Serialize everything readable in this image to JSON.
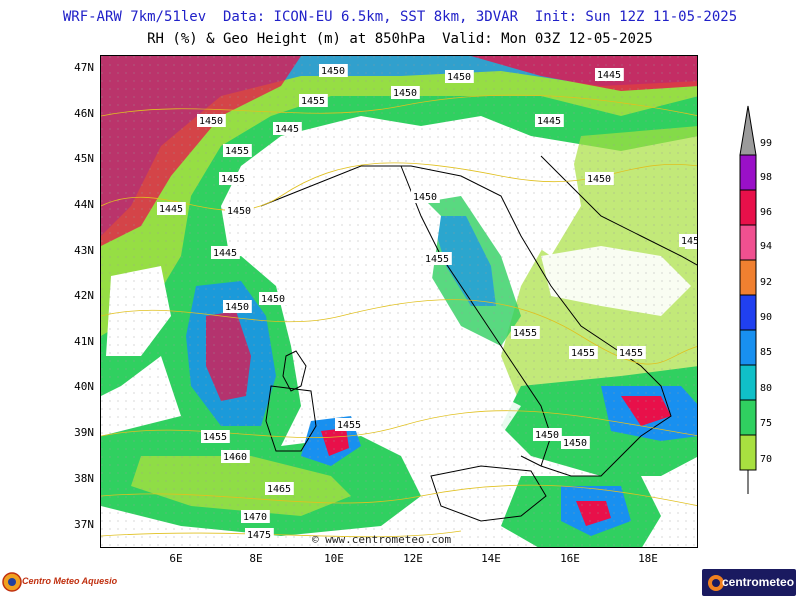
{
  "header": {
    "line1": "WRF-ARW 7km/51lev  Data: ICON-EU 6.5km, SST 8km, 3DVAR  Init: Sun 12Z 11-05-2025",
    "line2": "RH (%) & Geo Height (m) at 850hPa  Valid: Mon 03Z 12-05-2025"
  },
  "axes": {
    "lat_labels": [
      "47N",
      "46N",
      "45N",
      "44N",
      "43N",
      "42N",
      "41N",
      "40N",
      "39N",
      "38N",
      "37N"
    ],
    "lon_labels": [
      "6E",
      "8E",
      "10E",
      "12E",
      "14E",
      "16E",
      "18E"
    ]
  },
  "colorbar": {
    "levels": [
      "99",
      "98",
      "96",
      "94",
      "92",
      "90",
      "85",
      "80",
      "75",
      "70"
    ],
    "colors": [
      "#9b9b9b",
      "#9a10c8",
      "#e8104a",
      "#f05090",
      "#f08030",
      "#2040f0",
      "#1890f0",
      "#10c0c8",
      "#30d060",
      "#a8e040"
    ]
  },
  "contours": [
    {
      "label": "1450"
    },
    {
      "label": "1450"
    },
    {
      "label": "1445"
    },
    {
      "label": "1450"
    },
    {
      "label": "1455"
    },
    {
      "label": "1450"
    },
    {
      "label": "1445"
    },
    {
      "label": "1445"
    },
    {
      "label": "1455"
    },
    {
      "label": "1455"
    },
    {
      "label": "1445"
    },
    {
      "label": "1450"
    },
    {
      "label": "1450"
    },
    {
      "label": "1445"
    },
    {
      "label": "1450"
    },
    {
      "label": "1455"
    },
    {
      "label": "1445"
    },
    {
      "label": "1450"
    },
    {
      "label": "1450"
    },
    {
      "label": "1455"
    },
    {
      "label": "1455"
    },
    {
      "label": "1455"
    },
    {
      "label": "1455"
    },
    {
      "label": "1450"
    },
    {
      "label": "1450"
    },
    {
      "label": "1460"
    },
    {
      "label": "1455"
    },
    {
      "label": "1465"
    },
    {
      "label": "1470"
    },
    {
      "label": "1475"
    },
    {
      "label": "145"
    }
  ],
  "watermark": "©  www.centrometeo.com",
  "logos": {
    "left": "Centro Meteo Aquesio",
    "right": "centrometeo"
  }
}
